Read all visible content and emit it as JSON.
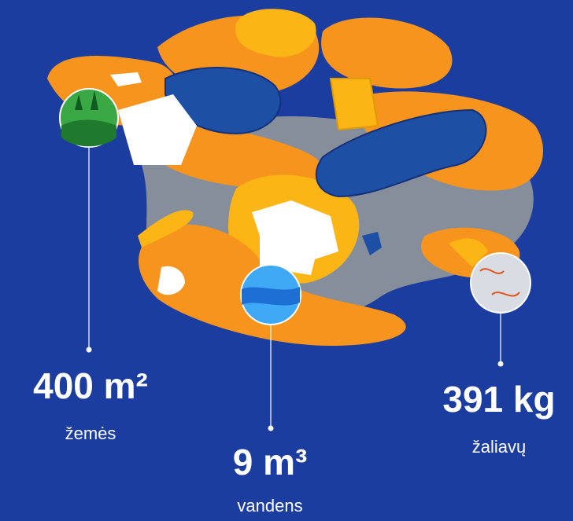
{
  "stats": [
    {
      "value": "400 m²",
      "label": "žemės"
    },
    {
      "value": "9 m³",
      "label": "vandens"
    },
    {
      "value": "391 kg",
      "label": "žaliavų"
    }
  ]
}
